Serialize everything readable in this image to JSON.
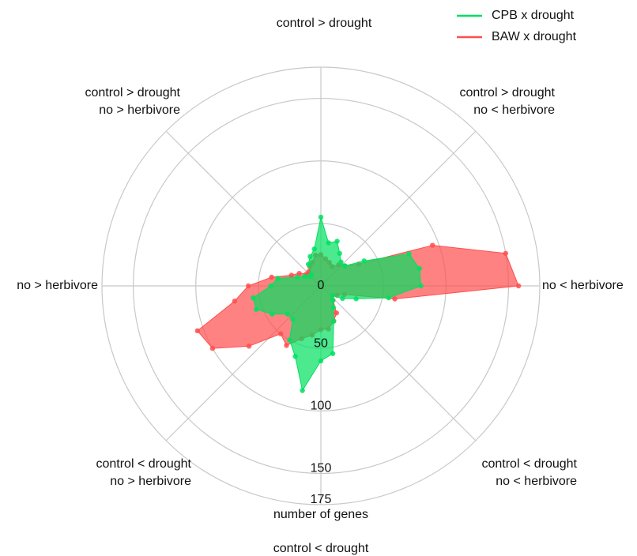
{
  "chart_data": {
    "type": "radar",
    "axis_labels": [
      [
        "control > drought"
      ],
      [
        "control > drought",
        "no < herbivore"
      ],
      [
        "no < herbivore"
      ],
      [
        "control < drought",
        "no < herbivore"
      ],
      [
        "control < drought"
      ],
      [
        "control < drought",
        "no > herbivore"
      ],
      [
        "no > herbivore"
      ],
      [
        "control > drought",
        "no > herbivore"
      ]
    ],
    "radial_label": "number of genes",
    "rlim": [
      0,
      175
    ],
    "rticks": [
      0,
      50,
      100,
      150,
      175
    ],
    "grid": true,
    "legend": "upper right",
    "series": [
      {
        "name": "BAW x drought",
        "color": "#ff4d4d",
        "values": [
          25,
          22,
          20,
          18,
          22,
          25,
          35,
          95,
          150,
          158,
          60,
          20,
          15,
          12,
          15,
          25,
          30,
          35,
          35,
          40,
          45,
          55,
          50,
          75,
          100,
          105,
          70,
          58,
          40,
          25,
          20,
          15,
          15,
          18,
          20,
          25
        ]
      },
      {
        "name": "CPB x drought",
        "color": "#00e060",
        "values": [
          55,
          35,
          38,
          30,
          25,
          25,
          40,
          75,
          80,
          80,
          55,
          30,
          20,
          12,
          15,
          20,
          30,
          55,
          60,
          85,
          60,
          50,
          35,
          35,
          45,
          55,
          55,
          40,
          35,
          20,
          15,
          12,
          12,
          20,
          25,
          30
        ]
      }
    ]
  }
}
